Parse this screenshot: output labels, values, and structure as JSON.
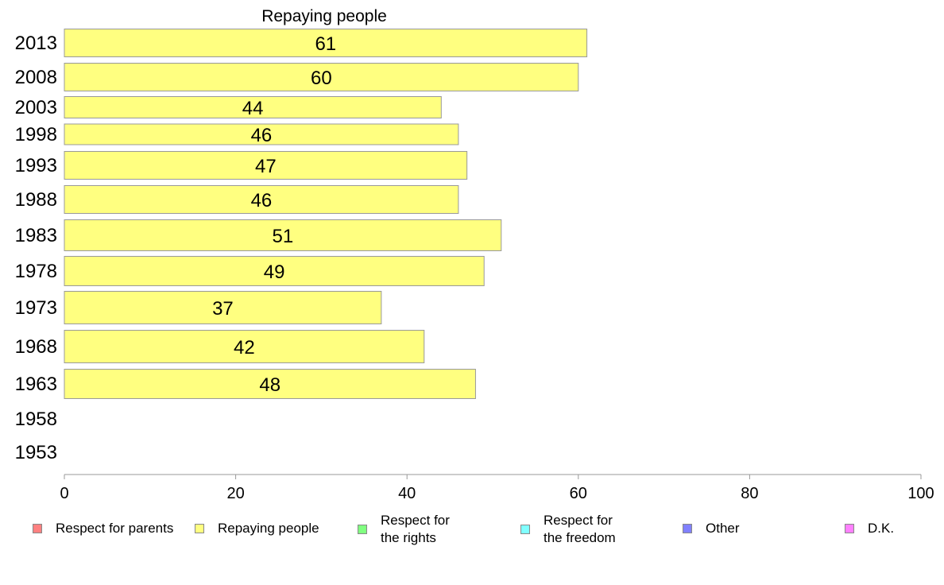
{
  "chart_data": {
    "type": "bar",
    "orientation": "horizontal",
    "title": "Repaying people",
    "categories": [
      "2013",
      "2008",
      "2003",
      "1998",
      "1993",
      "1988",
      "1983",
      "1978",
      "1973",
      "1968",
      "1963",
      "1958",
      "1953"
    ],
    "series": [
      {
        "name": "Repaying people",
        "color": "#ffff80",
        "values": [
          61,
          60,
          44,
          46,
          47,
          46,
          51,
          49,
          37,
          42,
          48,
          null,
          null
        ]
      }
    ],
    "data_labels": [
      "61",
      "60",
      "44",
      "46",
      "47",
      "46",
      "51",
      "49",
      "37",
      "42",
      "48",
      "",
      ""
    ],
    "xlim": [
      0,
      100
    ],
    "xticks": [
      "0",
      "20",
      "40",
      "60",
      "80",
      "100"
    ],
    "grid": false,
    "legend_position": "bottom",
    "legend": [
      {
        "label": "Respect for parents",
        "color": "#ff8080"
      },
      {
        "label": "Repaying people",
        "color": "#ffff80"
      },
      {
        "label": "Respect for\nthe rights",
        "color": "#80ff80"
      },
      {
        "label": "Respect for\nthe freedom",
        "color": "#80ffff"
      },
      {
        "label": "Other",
        "color": "#8080ff"
      },
      {
        "label": "D.K.",
        "color": "#ff80ff"
      }
    ]
  }
}
